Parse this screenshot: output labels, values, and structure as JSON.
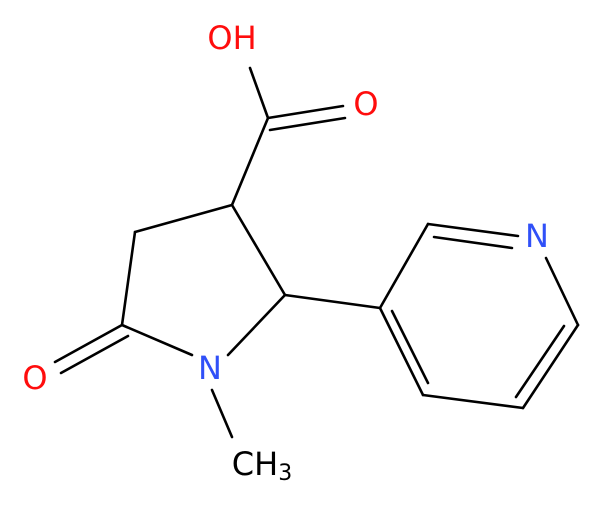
{
  "atoms": [
    {
      "label": "OH"
    },
    {
      "label": "O"
    },
    {
      "label": "O"
    },
    {
      "label": "N"
    },
    {
      "label": "N"
    },
    {
      "label": "CH",
      "subscript": "3"
    }
  ]
}
